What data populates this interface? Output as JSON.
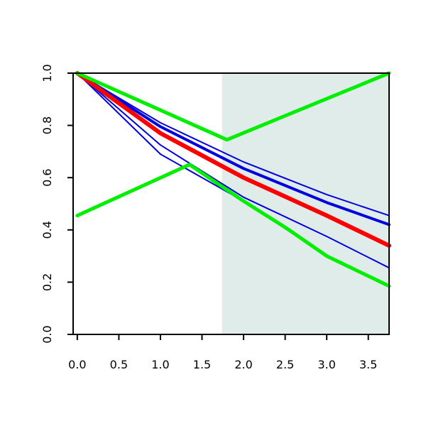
{
  "chart_data": {
    "type": "line",
    "title": "",
    "xlabel": "",
    "ylabel": "",
    "xlim": [
      -0.05,
      3.75
    ],
    "ylim": [
      0.0,
      1.0
    ],
    "x_ticks": [
      0.0,
      0.5,
      1.0,
      1.5,
      2.0,
      2.5,
      3.0,
      3.5
    ],
    "y_ticks": [
      0.0,
      0.2,
      0.4,
      0.6,
      0.8,
      1.0
    ],
    "x_tick_labels": [
      "0.0",
      "0.5",
      "1.0",
      "1.5",
      "2.0",
      "2.5",
      "3.0",
      "3.5"
    ],
    "y_tick_labels": [
      "0.0",
      "0.2",
      "0.4",
      "0.6",
      "0.8",
      "1.0"
    ],
    "shaded_region": {
      "x": [
        1.74,
        3.75
      ],
      "color": "#e0ecea"
    },
    "grid": false,
    "legend": "none",
    "series": [
      {
        "color": "#0000dd",
        "width": 2,
        "x": [
          0.0,
          1.0,
          2.0,
          3.0,
          3.75
        ],
        "y": [
          1.0,
          0.81,
          0.66,
          0.535,
          0.455
        ]
      },
      {
        "color": "#0000dd",
        "width": 4,
        "x": [
          0.0,
          1.0,
          2.0,
          3.0,
          3.75
        ],
        "y": [
          1.0,
          0.795,
          0.635,
          0.505,
          0.42
        ]
      },
      {
        "color": "#0000dd",
        "width": 2,
        "x": [
          0.0,
          1.0,
          2.0,
          3.0,
          3.75
        ],
        "y": [
          1.0,
          0.725,
          0.525,
          0.375,
          0.255
        ]
      },
      {
        "color": "#0000dd",
        "width": 2,
        "x": [
          0.0,
          1.0,
          2.0,
          3.0,
          3.75
        ],
        "y": [
          1.0,
          0.69,
          0.51,
          0.3,
          0.185
        ]
      },
      {
        "color": "#ff0000",
        "width": 6,
        "x": [
          0.0,
          1.0,
          2.0,
          3.0,
          3.75
        ],
        "y": [
          1.0,
          0.77,
          0.6,
          0.455,
          0.34
        ]
      },
      {
        "color": "#00ee00",
        "width": 5,
        "x": [
          0.0,
          1.8,
          3.75
        ],
        "y": [
          1.0,
          0.745,
          1.0
        ]
      },
      {
        "color": "#00ee00",
        "width": 5,
        "x": [
          0.0,
          1.35,
          2.0,
          2.5,
          3.0,
          3.75
        ],
        "y": [
          0.455,
          0.65,
          0.51,
          0.41,
          0.3,
          0.185
        ]
      }
    ]
  }
}
